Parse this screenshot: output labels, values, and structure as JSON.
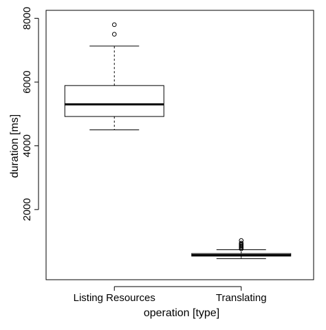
{
  "chart_data": {
    "type": "boxplot",
    "xlabel": "operation [type]",
    "ylabel": "duration [ms]",
    "ylim": [
      -200,
      8250
    ],
    "yticks": [
      2000,
      4000,
      6000,
      8000
    ],
    "ytick_labels": [
      "2000",
      "4000",
      "6000",
      "8000"
    ],
    "grid": false,
    "categories": [
      "Listing Resources",
      "Translating"
    ],
    "boxes": [
      {
        "name": "Listing Resources",
        "whisker_low": 4500,
        "q1": 4920,
        "median": 5300,
        "q3": 5890,
        "whisker_high": 7130,
        "outliers": [
          7500,
          7800
        ]
      },
      {
        "name": "Translating",
        "whisker_low": 460,
        "q1": 540,
        "median": 570,
        "q3": 620,
        "whisker_high": 740,
        "outliers": [
          770,
          800,
          830,
          860,
          890,
          920,
          950,
          1030
        ]
      }
    ]
  }
}
